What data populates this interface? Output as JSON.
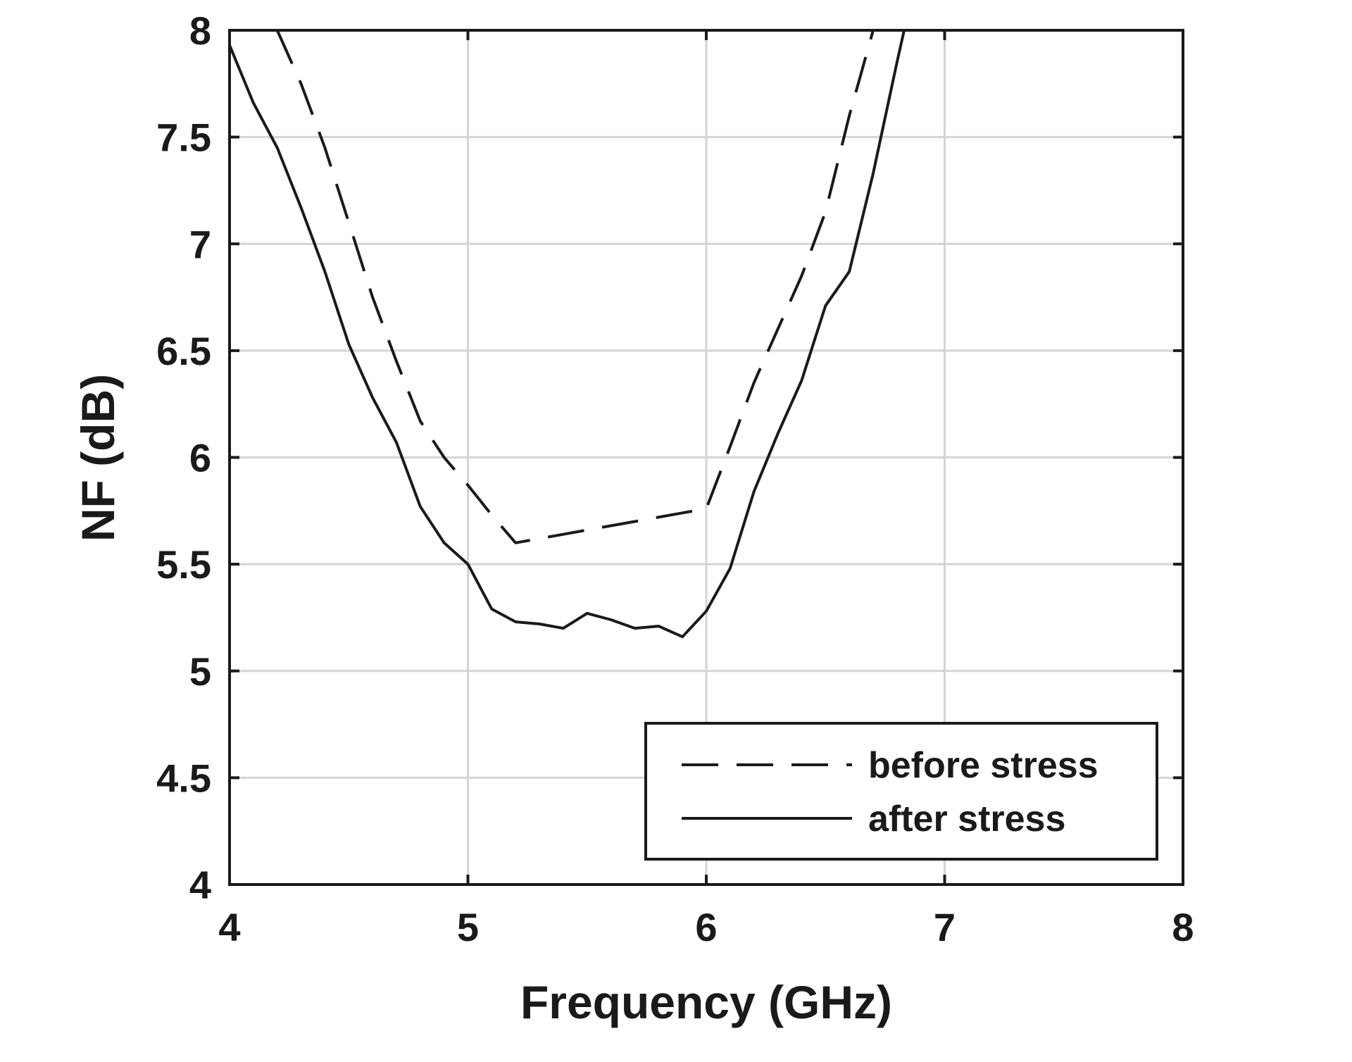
{
  "chart_data": {
    "type": "line",
    "title": "",
    "xlabel": "Frequency (GHz)",
    "ylabel": "NF (dB)",
    "xlim": [
      4,
      8
    ],
    "ylim": [
      4,
      8
    ],
    "x_ticks": [
      4,
      5,
      6,
      7,
      8
    ],
    "x_tick_labels": [
      "4",
      "5",
      "6",
      "7",
      "8"
    ],
    "y_ticks": [
      4,
      4.5,
      5,
      5.5,
      6,
      6.5,
      7,
      7.5,
      8
    ],
    "y_tick_labels": [
      "4",
      "4.5",
      "5",
      "5.5",
      "6",
      "6.5",
      "7",
      "7.5",
      "8"
    ],
    "grid": true,
    "legend_position": "bottom-right",
    "series": [
      {
        "name": "before stress",
        "style": "dashed",
        "color": "#1a1a1a",
        "x": [
          4.2,
          4.3,
          4.4,
          4.5,
          4.6,
          4.7,
          4.8,
          4.9,
          5.0,
          5.1,
          5.2,
          5.3,
          5.4,
          5.5,
          5.6,
          5.7,
          5.8,
          5.9,
          6.0,
          6.1,
          6.2,
          6.3,
          6.4,
          6.5,
          6.6,
          6.7
        ],
        "y": [
          8.0,
          7.75,
          7.45,
          7.1,
          6.75,
          6.45,
          6.17,
          6.0,
          5.87,
          5.73,
          5.6,
          5.62,
          5.64,
          5.66,
          5.68,
          5.7,
          5.72,
          5.74,
          5.76,
          6.05,
          6.35,
          6.6,
          6.85,
          7.15,
          7.6,
          8.0
        ]
      },
      {
        "name": "after stress",
        "style": "solid",
        "color": "#1a1a1a",
        "x": [
          4.0,
          4.1,
          4.2,
          4.3,
          4.4,
          4.5,
          4.6,
          4.7,
          4.8,
          4.9,
          5.0,
          5.1,
          5.2,
          5.3,
          5.4,
          5.5,
          5.6,
          5.7,
          5.8,
          5.9,
          6.0,
          6.1,
          6.2,
          6.3,
          6.4,
          6.5,
          6.6,
          6.7,
          6.8,
          6.83
        ],
        "y": [
          7.93,
          7.66,
          7.45,
          7.17,
          6.87,
          6.53,
          6.28,
          6.07,
          5.77,
          5.6,
          5.5,
          5.29,
          5.23,
          5.22,
          5.2,
          5.27,
          5.24,
          5.2,
          5.21,
          5.16,
          5.28,
          5.48,
          5.84,
          6.11,
          6.36,
          6.71,
          6.87,
          7.33,
          7.85,
          8.0
        ]
      }
    ]
  }
}
